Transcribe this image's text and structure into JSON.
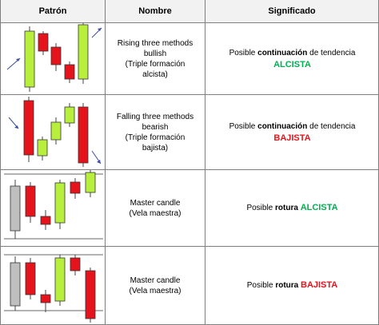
{
  "header": {
    "col1": "Patrón",
    "col2": "Nombre",
    "col3": "Significado"
  },
  "rows": [
    {
      "name_lines": [
        "Rising three methods",
        "bullish",
        "(Triple formación",
        "alcista)"
      ],
      "sig_prefix": "Posible ",
      "sig_bold": "continuación",
      "sig_suffix": " de tendencia",
      "sig_result": "ALCISTA",
      "result_color": "#00b050"
    },
    {
      "name_lines": [
        "Falling three methods",
        "bearish",
        "(Triple formación",
        "bajista)"
      ],
      "sig_prefix": "Posible ",
      "sig_bold": "continuación",
      "sig_suffix": " de tendencia",
      "sig_result": "BAJISTA",
      "result_color": "#e5131b"
    },
    {
      "name_lines": [
        "Master candle",
        "(Vela maestra)"
      ],
      "sig_prefix": "Posible ",
      "sig_bold": "rotura",
      "sig_suffix": " ",
      "sig_result": "ALCISTA",
      "result_color": "#00b050"
    },
    {
      "name_lines": [
        "Master candle",
        "(Vela maestra)"
      ],
      "sig_prefix": "Posible ",
      "sig_bold": "rotura",
      "sig_suffix": " ",
      "sig_result": "BAJISTA",
      "result_color": "#e5131b"
    }
  ],
  "colors": {
    "bull": "#b7ef3c",
    "bear": "#e5131b",
    "neutral": "#bfbfbf",
    "trend_arrow": "#3b4ea0"
  }
}
